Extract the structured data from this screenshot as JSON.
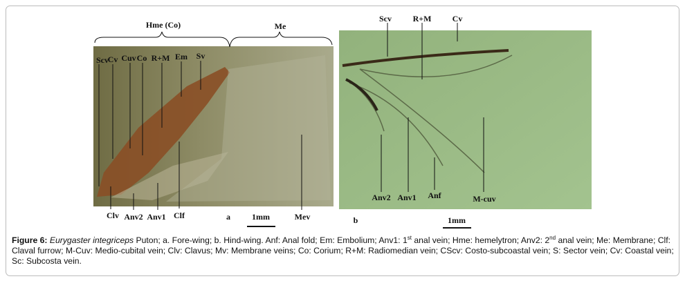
{
  "figure": {
    "panel_a": {
      "letter": "a",
      "scale": "1mm",
      "brace_labels": [
        "Hme (Co)",
        "Me"
      ],
      "top_labels": [
        "Scv",
        "Cv",
        "Cuv",
        "Co",
        "R+M",
        "Em",
        "Sv"
      ],
      "bottom_labels": [
        "Clv",
        "Anv2",
        "Anv1",
        "Clf",
        "Mev"
      ]
    },
    "panel_b": {
      "letter": "b",
      "scale": "1mm",
      "top_labels": [
        "Scv",
        "R+M",
        "Cv"
      ],
      "bottom_labels": [
        "Anv2",
        "Anv1",
        "Anf",
        "M-cuv"
      ]
    }
  },
  "caption": {
    "label": "Figure 6:",
    "species": "Eurygaster integriceps",
    "body": [
      " Puton; a. Fore-wing; b. Hind-wing. Anf: Anal fold; Em: Embolium; Anv1: 1",
      "st",
      " anal vein; Hme: hemelytron; Anv2: 2",
      "nd",
      " anal vein; Me: Membrane; Clf: Claval furrow; M-Cuv: Medio-cubital vein; Clv: Clavus; Mv: Membrane veins; Co: Corium; R+M: Radiomedian vein; CScv: Costo-subcoastal vein; S: Sector vein; Cv: Coastal vein; Sc: Subcosta vein."
    ]
  }
}
